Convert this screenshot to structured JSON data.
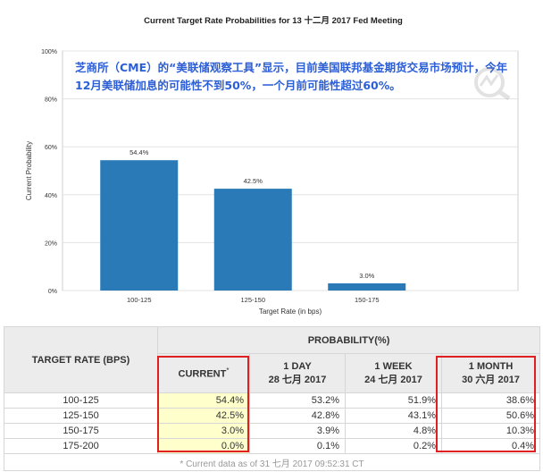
{
  "chart_data": {
    "type": "bar",
    "title": "Current Target Rate Probabilities for 13 十二月 2017 Fed Meeting",
    "xlabel": "Target Rate (in bps)",
    "ylabel": "Current Probability",
    "categories": [
      "100-125",
      "125-150",
      "150-175"
    ],
    "values": [
      54.4,
      42.5,
      3.0
    ],
    "value_labels": [
      "54.4%",
      "42.5%",
      "3.0%"
    ],
    "ylim": [
      0,
      100
    ],
    "yticks": [
      0,
      20,
      40,
      60,
      80,
      100
    ],
    "ytick_labels": [
      "0%",
      "20%",
      "40%",
      "60%",
      "80%",
      "100%"
    ],
    "grid": true,
    "bar_color": "#2a7ab7"
  },
  "annotation": {
    "text": "芝商所（CME）的“美联储观察工具”显示，目前美国联邦基金期货交易市场预计，今年12月美联储加息的可能性不到50%，一个月前可能性超过60%。",
    "color": "#2c5ed6"
  },
  "table": {
    "rate_header": "TARGET RATE (BPS)",
    "prob_header": "PROBABILITY(%)",
    "columns": [
      {
        "line1": "CURRENT",
        "star": "*",
        "line2": ""
      },
      {
        "line1": "1 DAY",
        "line2": "28 七月 2017"
      },
      {
        "line1": "1 WEEK",
        "line2": "24 七月 2017"
      },
      {
        "line1": "1 MONTH",
        "line2": "30 六月 2017"
      }
    ],
    "rows": [
      {
        "rate": "100-125",
        "values": [
          "54.4%",
          "53.2%",
          "51.9%",
          "38.6%"
        ]
      },
      {
        "rate": "125-150",
        "values": [
          "42.5%",
          "42.8%",
          "43.1%",
          "50.6%"
        ]
      },
      {
        "rate": "150-175",
        "values": [
          "3.0%",
          "3.9%",
          "4.8%",
          "10.3%"
        ]
      },
      {
        "rate": "175-200",
        "values": [
          "0.0%",
          "0.1%",
          "0.2%",
          "0.4%"
        ]
      }
    ],
    "footnote": "* Current data as of 31 七月 2017 09:52:31 CT"
  },
  "highlight_color": "#e02020"
}
